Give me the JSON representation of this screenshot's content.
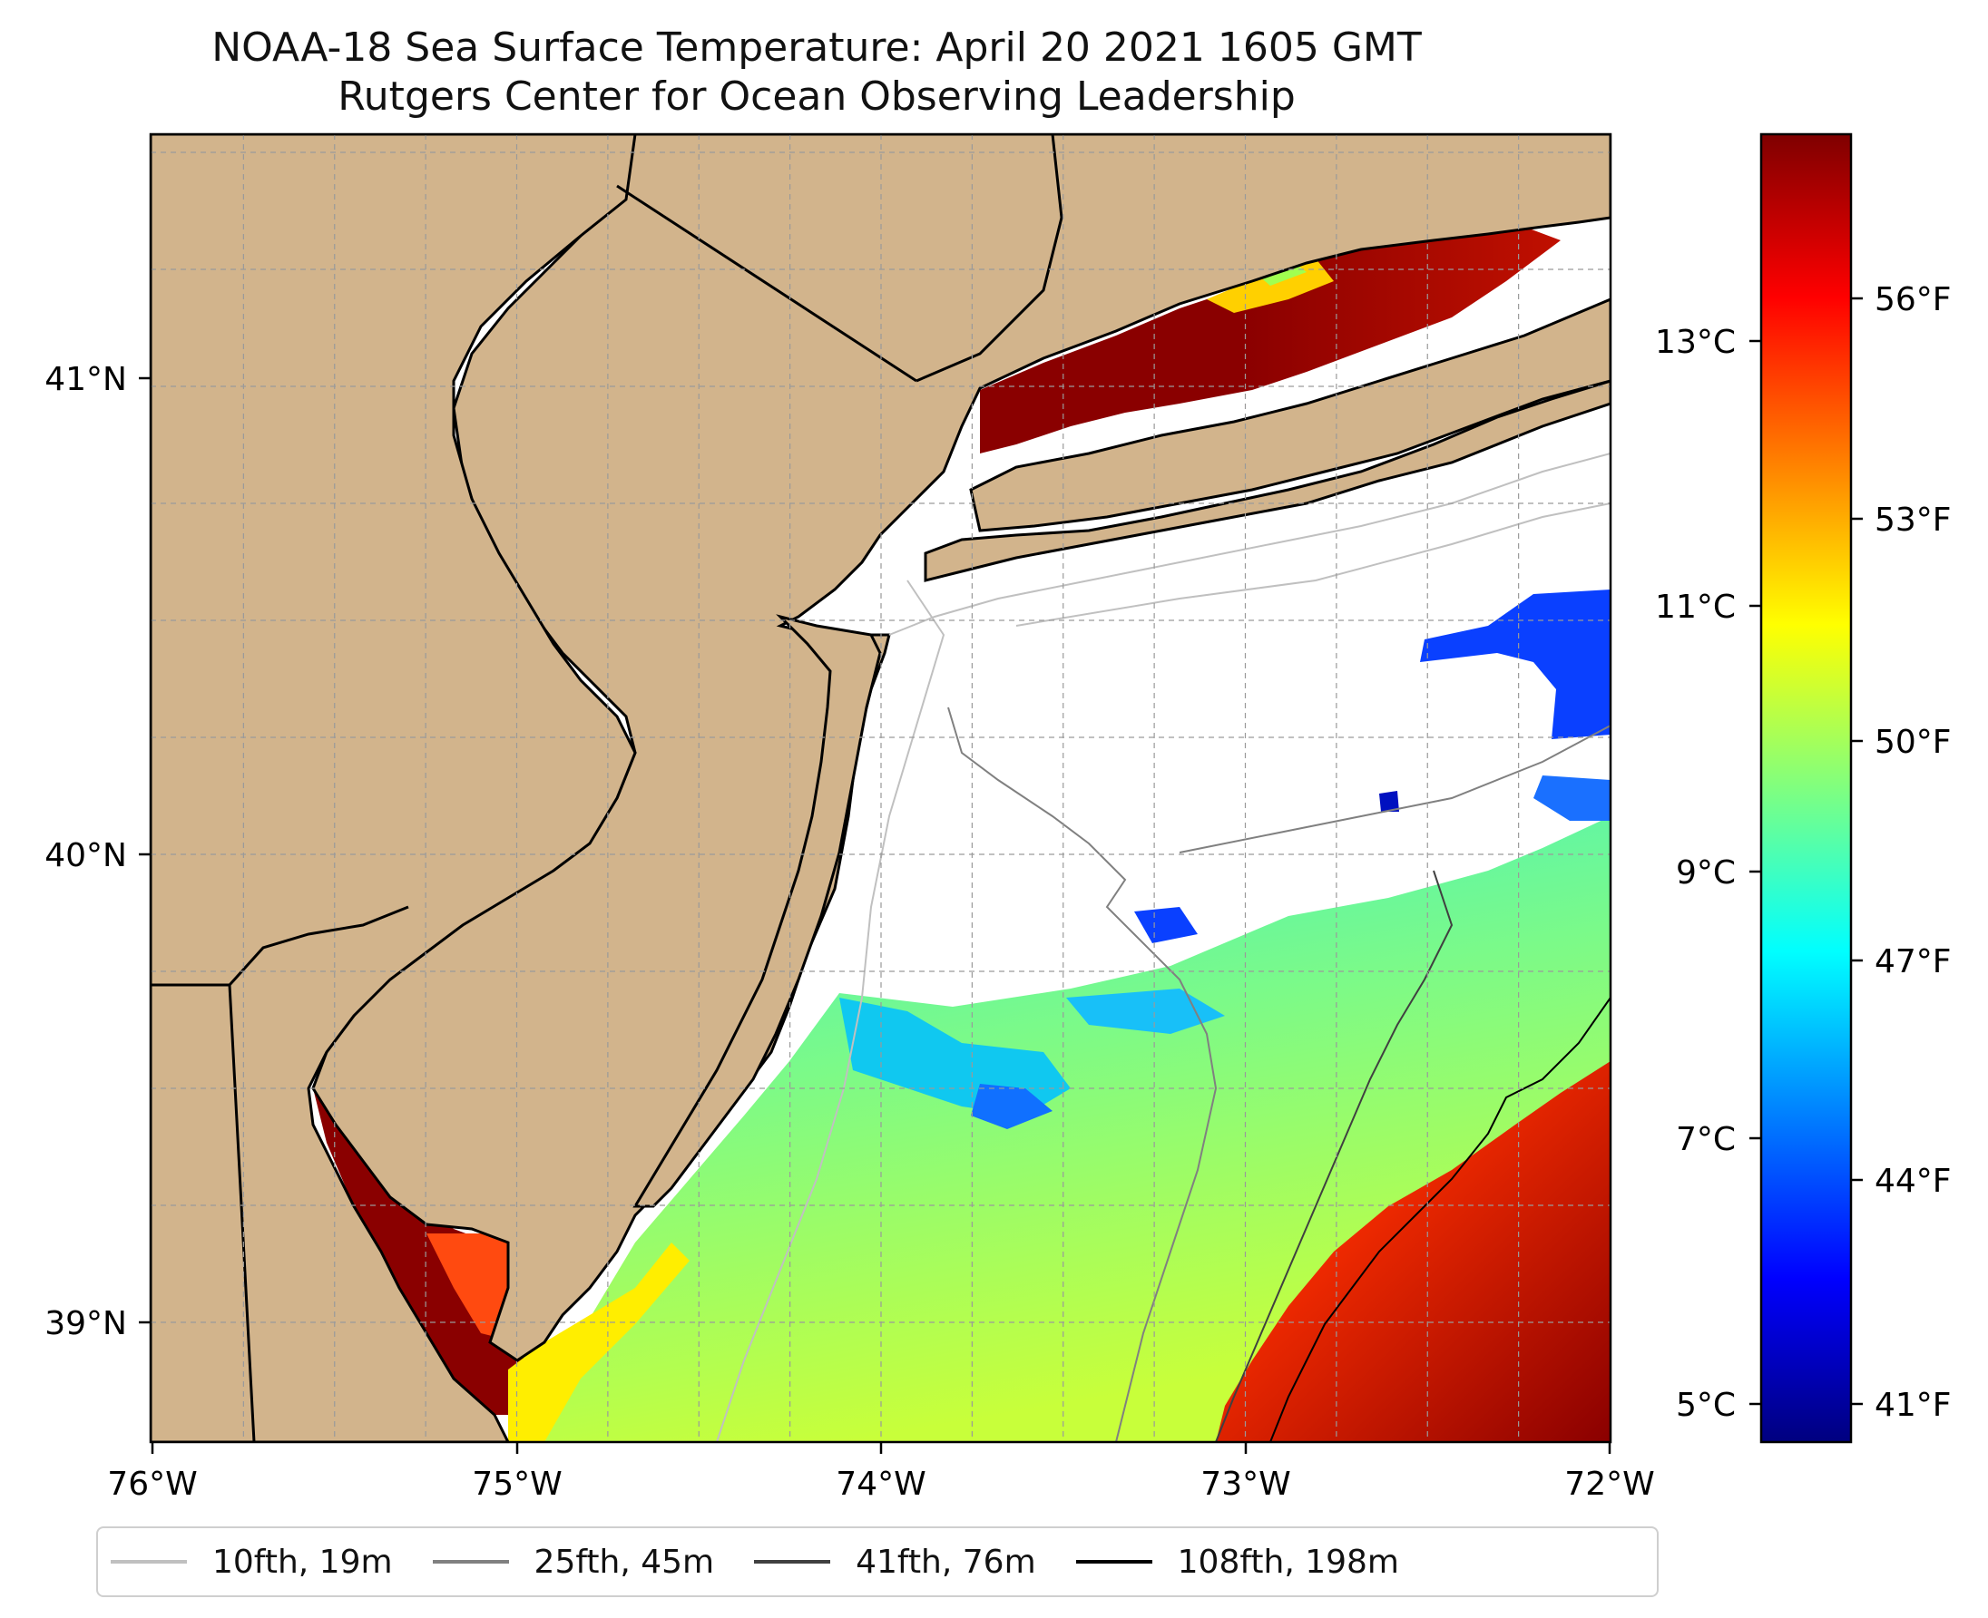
{
  "title": {
    "line1": "NOAA-18 Sea Surface Temperature: April 20 2021 1605 GMT",
    "line2": "Rutgers Center for Ocean Observing Leadership"
  },
  "map": {
    "lon_range": [
      -76,
      -72
    ],
    "lat_range": [
      38.75,
      41.5
    ],
    "x_ticks": [
      "76°W",
      "75°W",
      "74°W",
      "73°W",
      "72°W"
    ],
    "y_ticks": [
      "39°N",
      "40°N",
      "41°N"
    ],
    "land_color": "#d2b48c",
    "no_data_color": "#ffffff",
    "gridlines": true,
    "colormap": "jet"
  },
  "colorbar": {
    "celsius_ticks": [
      "5°C",
      "7°C",
      "9°C",
      "11°C",
      "13°C"
    ],
    "fahrenheit_ticks": [
      "41°F",
      "44°F",
      "47°F",
      "50°F",
      "53°F",
      "56°F"
    ]
  },
  "legend": {
    "items": [
      {
        "label": "10fth, 19m",
        "color": "#c0c0c0"
      },
      {
        "label": "25fth, 45m",
        "color": "#808080"
      },
      {
        "label": "41fth, 76m",
        "color": "#404040"
      },
      {
        "label": "108fth, 198m",
        "color": "#000000"
      }
    ]
  }
}
